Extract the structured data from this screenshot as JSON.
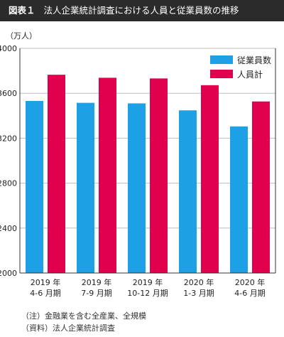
{
  "header": {
    "figure_label": "図表１",
    "title": "法人企業統計調査における人員と従業員数の推移"
  },
  "notes": {
    "note": "（注）金融業を含む全産業、全規模",
    "source": "（資料）法人企業統計調査"
  },
  "chart_data": {
    "type": "bar",
    "unit_label": "（万人）",
    "categories": [
      [
        "2019 年",
        "4-6 月期"
      ],
      [
        "2019 年",
        "7-9 月期"
      ],
      [
        "2019 年",
        "10-12 月期"
      ],
      [
        "2020 年",
        "1-3 月期"
      ],
      [
        "2020 年",
        "4-6 月期"
      ]
    ],
    "series": [
      {
        "name": "従業員数",
        "color": "#1ea0e6",
        "values": [
          3532,
          3515,
          3510,
          3448,
          3305
        ]
      },
      {
        "name": "人員計",
        "color": "#e0004d",
        "values": [
          3765,
          3738,
          3732,
          3672,
          3527
        ]
      }
    ],
    "ylim": [
      2000,
      4000
    ],
    "yticks": [
      2000,
      2400,
      2800,
      3200,
      3600,
      4000
    ],
    "grid": true,
    "legend_position": "top-right"
  }
}
